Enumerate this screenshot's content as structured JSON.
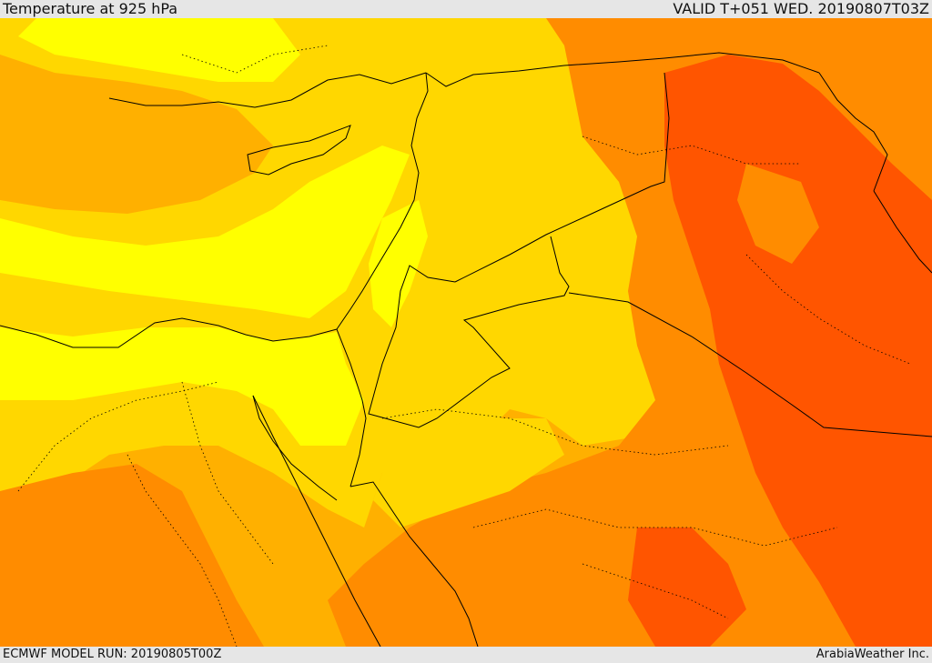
{
  "header": {
    "title": "Temperature at 925 hPa",
    "valid": "VALID T+051 WED. 20190807T03Z"
  },
  "footer": {
    "model_run": "ECMWF MODEL RUN: 20190805T00Z",
    "credit": "ArabiaWeather Inc."
  },
  "palette": {
    "band_1": "#ffff00",
    "band_2": "#ffd700",
    "band_3": "#ffb000",
    "band_4": "#ff8c00",
    "band_5": "#ff5500",
    "borders": "#000000"
  }
}
